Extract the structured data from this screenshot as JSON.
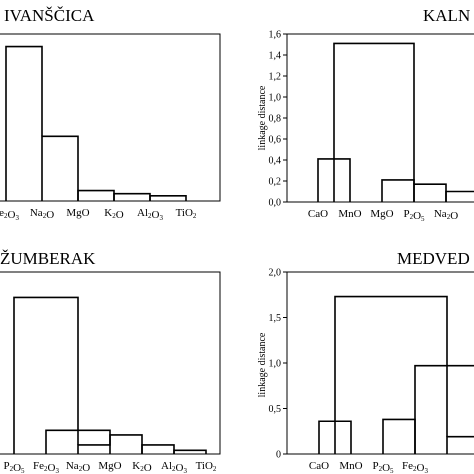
{
  "chart_data": [
    {
      "type": "dendrogram",
      "title": "IVANŠČICA",
      "ylabel": "",
      "ylim": null,
      "yticks": [],
      "categories": [
        {
          "base": "Fe",
          "sub": "2",
          "rest": "O",
          "sub2": "3"
        },
        {
          "base": "Na",
          "sub": "2",
          "rest": "O",
          "sub2": ""
        },
        {
          "base": "MgO",
          "sub": "",
          "rest": "",
          "sub2": ""
        },
        {
          "base": "K",
          "sub": "2",
          "rest": "O",
          "sub2": ""
        },
        {
          "base": "Al",
          "sub": "2",
          "rest": "O",
          "sub2": "3"
        },
        {
          "base": "TiO",
          "sub": "2",
          "rest": "",
          "sub2": ""
        }
      ],
      "linkages": [
        {
          "left": 1,
          "right": 2,
          "height": 0.62
        },
        {
          "left": 2,
          "right": 3,
          "height": 0.1
        },
        {
          "left": 3,
          "right": 4,
          "height": 0.07
        },
        {
          "left": 4,
          "right": 5,
          "height": 0.05
        },
        {
          "left": 0,
          "right": 1,
          "height": 1.48
        }
      ]
    },
    {
      "type": "dendrogram",
      "title": "KALN",
      "ylabel": "linkage distance",
      "ylim": [
        0,
        1.6
      ],
      "yticks": [
        "0,0",
        "0,2",
        "0,4",
        "0,6",
        "0,8",
        "1,0",
        "1,2",
        "1,4",
        "1,6"
      ],
      "categories": [
        {
          "base": "CaO",
          "sub": "",
          "rest": "",
          "sub2": ""
        },
        {
          "base": "MnO",
          "sub": "",
          "rest": "",
          "sub2": ""
        },
        {
          "base": "MgO",
          "sub": "",
          "rest": "",
          "sub2": ""
        },
        {
          "base": "P",
          "sub": "2",
          "rest": "O",
          "sub2": "5"
        },
        {
          "base": "Na",
          "sub": "2",
          "rest": "O",
          "sub2": ""
        }
      ],
      "linkages": [
        {
          "left": 0,
          "right": 1,
          "height": 0.41
        },
        {
          "left": 2,
          "right": 3,
          "height": 0.21
        },
        {
          "left": 3,
          "right": 4,
          "height": 0.17
        },
        {
          "left": 4,
          "right": 5,
          "height": 0.1
        },
        {
          "left": 0.5,
          "right": 3,
          "height": 1.51
        }
      ]
    },
    {
      "type": "dendrogram",
      "title": "ŽUMBERAK",
      "ylabel": "",
      "ylim": null,
      "yticks": [],
      "categories": [
        {
          "base": "P",
          "sub": "2",
          "rest": "O",
          "sub2": "5"
        },
        {
          "base": "Fe",
          "sub": "2",
          "rest": "O",
          "sub2": "3"
        },
        {
          "base": "Na",
          "sub": "2",
          "rest": "O",
          "sub2": ""
        },
        {
          "base": "MgO",
          "sub": "",
          "rest": "",
          "sub2": ""
        },
        {
          "base": "K",
          "sub": "2",
          "rest": "O",
          "sub2": ""
        },
        {
          "base": "Al",
          "sub": "2",
          "rest": "O",
          "sub2": "3"
        },
        {
          "base": "TiO",
          "sub": "2",
          "rest": "",
          "sub2": ""
        }
      ],
      "linkages": [
        {
          "left": 3,
          "right": 4,
          "height": 0.21
        },
        {
          "left": 4,
          "right": 5,
          "height": 0.1
        },
        {
          "left": 5,
          "right": 6,
          "height": 0.04
        },
        {
          "left": 1,
          "right": 3,
          "height": 0.26
        },
        {
          "left": 2,
          "right": 3,
          "height": 0.1
        },
        {
          "left": 0,
          "right": 2,
          "height": 1.72
        }
      ]
    },
    {
      "type": "dendrogram",
      "title": "MEDVED",
      "ylabel": "linkage distance",
      "ylim": [
        0,
        2.0
      ],
      "yticks": [
        "0",
        "0,5",
        "1,0",
        "1,5",
        "2,0"
      ],
      "categories": [
        {
          "base": "CaO",
          "sub": "",
          "rest": "",
          "sub2": ""
        },
        {
          "base": "MnO",
          "sub": "",
          "rest": "",
          "sub2": ""
        },
        {
          "base": "P",
          "sub": "2",
          "rest": "O",
          "sub2": "5"
        },
        {
          "base": "Fe",
          "sub": "2",
          "rest": "O",
          "sub2": "3"
        }
      ],
      "linkages": [
        {
          "left": 0,
          "right": 1,
          "height": 0.36
        },
        {
          "left": 2,
          "right": 3,
          "height": 0.38
        },
        {
          "left": 3,
          "right": 5,
          "height": 0.97
        },
        {
          "left": 4,
          "right": 5,
          "height": 0.19
        },
        {
          "left": 0.5,
          "right": 4,
          "height": 1.73
        }
      ]
    }
  ]
}
